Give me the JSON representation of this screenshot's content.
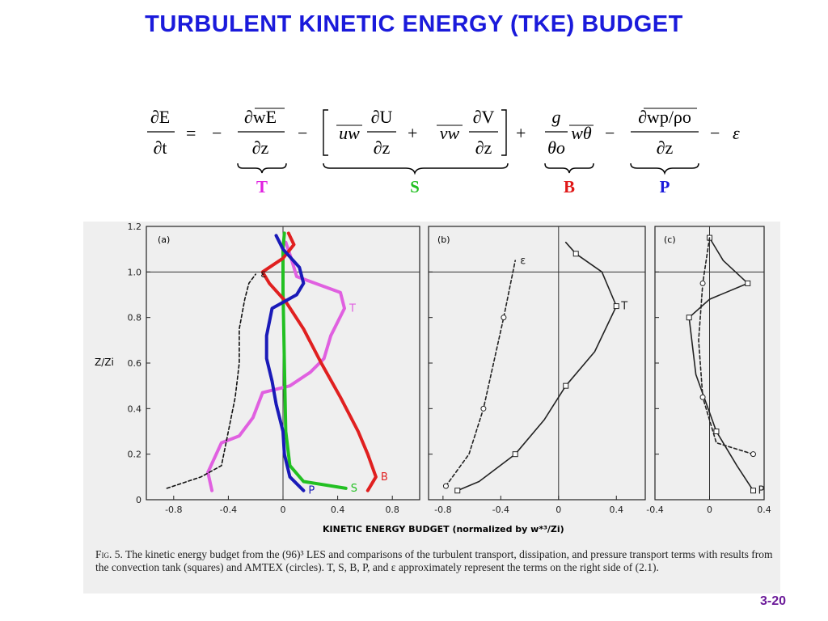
{
  "slide": {
    "title": "TURBULENT KINETIC ENERGY (TKE) BUDGET",
    "page_number": "3-20"
  },
  "equation": {
    "lhs_num": "∂E",
    "lhs_den": "∂t",
    "t1_num": "∂wE",
    "t1_den": "∂z",
    "s1_coef": "uw",
    "s1_num": "∂U",
    "s1_den": "∂z",
    "s2_coef": "vw",
    "s2_num": "∂V",
    "s2_den": "∂z",
    "b_num": "g",
    "b_den": "θo",
    "b_term": "wθ",
    "p_num": "∂wp/ρo",
    "p_den": "∂z",
    "eps": "ε",
    "labels": [
      {
        "text": "T",
        "color": "#e020e0"
      },
      {
        "text": "S",
        "color": "#22c022"
      },
      {
        "text": "B",
        "color": "#e01818"
      },
      {
        "text": "P",
        "color": "#1a1adb"
      }
    ]
  },
  "chart_data": [
    {
      "type": "line",
      "panel_label": "(a)",
      "ylabel": "Z/Zi",
      "xlim": [
        -1.0,
        1.0
      ],
      "ylim": [
        0,
        1.2
      ],
      "xticks": [
        "-0.8",
        "-0.4",
        "0",
        "0.4",
        "0.8"
      ],
      "yticks": [
        "0",
        "0.2",
        "0.4",
        "0.6",
        "0.8",
        "1.0",
        "1.2"
      ],
      "series": [
        {
          "name": "T",
          "color": "#e060e0",
          "points": [
            [
              -0.52,
              0.04
            ],
            [
              -0.55,
              0.12
            ],
            [
              -0.45,
              0.25
            ],
            [
              -0.32,
              0.28
            ],
            [
              -0.22,
              0.36
            ],
            [
              -0.15,
              0.47
            ],
            [
              0.05,
              0.5
            ],
            [
              0.2,
              0.56
            ],
            [
              0.3,
              0.62
            ],
            [
              0.35,
              0.72
            ],
            [
              0.45,
              0.84
            ],
            [
              0.42,
              0.91
            ],
            [
              0.1,
              0.98
            ],
            [
              0.06,
              1.06
            ],
            [
              0.02,
              1.13
            ]
          ]
        },
        {
          "name": "S",
          "color": "#22c022",
          "points": [
            [
              0.46,
              0.05
            ],
            [
              0.15,
              0.08
            ],
            [
              0.05,
              0.15
            ],
            [
              0.02,
              0.3
            ],
            [
              0.01,
              0.6
            ],
            [
              0.0,
              0.92
            ],
            [
              0.0,
              1.1
            ],
            [
              0.01,
              1.17
            ]
          ]
        },
        {
          "name": "B",
          "color": "#e02020",
          "points": [
            [
              0.62,
              0.04
            ],
            [
              0.68,
              0.1
            ],
            [
              0.62,
              0.2
            ],
            [
              0.55,
              0.3
            ],
            [
              0.42,
              0.45
            ],
            [
              0.28,
              0.6
            ],
            [
              0.15,
              0.75
            ],
            [
              0.02,
              0.87
            ],
            [
              -0.1,
              0.95
            ],
            [
              -0.15,
              1.0
            ],
            [
              0.0,
              1.06
            ],
            [
              0.08,
              1.12
            ],
            [
              0.04,
              1.17
            ]
          ]
        },
        {
          "name": "P",
          "color": "#1a1ab8",
          "points": [
            [
              0.15,
              0.04
            ],
            [
              0.05,
              0.1
            ],
            [
              0.01,
              0.2
            ],
            [
              0.0,
              0.3
            ],
            [
              -0.05,
              0.42
            ],
            [
              -0.08,
              0.52
            ],
            [
              -0.12,
              0.62
            ],
            [
              -0.12,
              0.72
            ],
            [
              -0.08,
              0.84
            ],
            [
              0.1,
              0.9
            ],
            [
              0.15,
              0.95
            ],
            [
              0.12,
              1.02
            ],
            [
              0.0,
              1.1
            ],
            [
              -0.05,
              1.16
            ]
          ]
        },
        {
          "name": "ε",
          "color": "#111111",
          "dashed": true,
          "points": [
            [
              -0.85,
              0.05
            ],
            [
              -0.6,
              0.1
            ],
            [
              -0.45,
              0.15
            ],
            [
              -0.4,
              0.3
            ],
            [
              -0.35,
              0.45
            ],
            [
              -0.32,
              0.6
            ],
            [
              -0.32,
              0.75
            ],
            [
              -0.28,
              0.88
            ],
            [
              -0.25,
              0.95
            ],
            [
              -0.2,
              0.99
            ]
          ]
        }
      ]
    },
    {
      "type": "line",
      "panel_label": "(b)",
      "xlim": [
        -0.9,
        0.6
      ],
      "ylim": [
        0,
        1.2
      ],
      "xticks": [
        "-0.8",
        "-0.4",
        "0",
        "0.4"
      ],
      "series": [
        {
          "name": "T",
          "color": "#222222",
          "points": [
            [
              -0.7,
              0.04
            ],
            [
              -0.55,
              0.08
            ],
            [
              -0.3,
              0.2
            ],
            [
              -0.1,
              0.35
            ],
            [
              0.05,
              0.5
            ],
            [
              0.25,
              0.65
            ],
            [
              0.4,
              0.85
            ],
            [
              0.3,
              1.0
            ],
            [
              0.12,
              1.08
            ],
            [
              0.05,
              1.13
            ]
          ]
        },
        {
          "name": "ε",
          "color": "#222222",
          "dashed": true,
          "points": [
            [
              -0.78,
              0.06
            ],
            [
              -0.62,
              0.2
            ],
            [
              -0.52,
              0.4
            ],
            [
              -0.45,
              0.6
            ],
            [
              -0.38,
              0.8
            ],
            [
              -0.3,
              1.05
            ]
          ]
        }
      ]
    },
    {
      "type": "line",
      "panel_label": "(c)",
      "xlim": [
        -0.4,
        0.4
      ],
      "ylim": [
        0,
        1.2
      ],
      "xticks": [
        "-0.4",
        "0",
        "0.4"
      ],
      "series": [
        {
          "name": "P",
          "color": "#222222",
          "points": [
            [
              0.32,
              0.04
            ],
            [
              0.2,
              0.15
            ],
            [
              0.05,
              0.3
            ],
            [
              -0.1,
              0.55
            ],
            [
              -0.15,
              0.8
            ],
            [
              0.0,
              0.88
            ],
            [
              0.28,
              0.95
            ],
            [
              0.1,
              1.05
            ],
            [
              0.0,
              1.15
            ]
          ]
        },
        {
          "color": "#222222",
          "dashed": true,
          "points": [
            [
              0.32,
              0.2
            ],
            [
              0.05,
              0.25
            ],
            [
              -0.05,
              0.45
            ],
            [
              -0.08,
              0.7
            ],
            [
              -0.05,
              0.95
            ],
            [
              0.0,
              1.15
            ]
          ]
        }
      ]
    }
  ],
  "figure": {
    "xlabel": "KINETIC ENERGY BUDGET (normalized by w*³/Zi)",
    "caption_fig": "Fig. 5.",
    "caption_text": "The kinetic energy budget from the (96)³ LES and comparisons of the turbulent transport, dissipation, and pressure transport terms with results from the convection tank (squares) and AMTEX (circles). T, S, B, P, and ε approximately represent the terms on the right side of (2.1)."
  }
}
